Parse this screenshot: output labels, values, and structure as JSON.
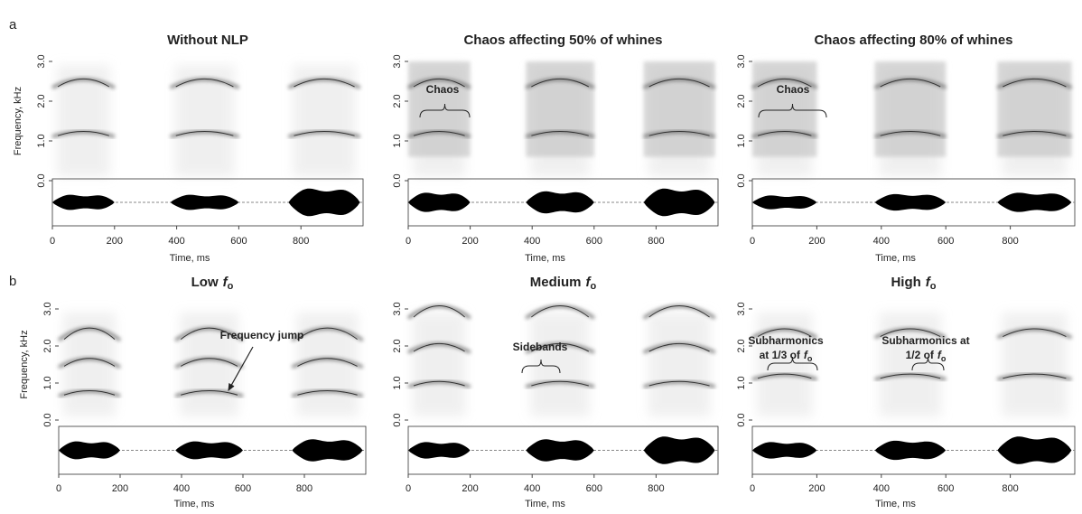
{
  "figure": {
    "panel_labels": [
      "a",
      "b"
    ],
    "y_axis_label": "Frequency, kHz",
    "x_axis_label": "Time, ms",
    "xlim": [
      0,
      1000
    ],
    "xticks": [
      0,
      200,
      400,
      600,
      800
    ],
    "ylim": [
      0,
      3
    ],
    "yticks": [
      {
        "value": 0,
        "label": "0.0"
      },
      {
        "value": 1,
        "label": "1.0"
      },
      {
        "value": 2,
        "label": "2.0"
      },
      {
        "value": 3,
        "label": "3.0"
      }
    ],
    "panels": [
      {
        "title": "Without NLP",
        "annotations": []
      },
      {
        "title": "Chaos affecting 50% of whines",
        "annotations": [
          {
            "lines": [
              "Chaos"
            ]
          }
        ]
      },
      {
        "title": "Chaos affecting 80% of whines",
        "annotations": [
          {
            "lines": [
              "Chaos"
            ]
          }
        ]
      },
      {
        "title": "Low",
        "title_symbol": "f",
        "title_subscript": "o",
        "annotations": [
          {
            "lines": [
              "Frequency jump"
            ]
          }
        ]
      },
      {
        "title": "Medium",
        "title_symbol": "f",
        "title_subscript": "o",
        "annotations": [
          {
            "lines": [
              "Sidebands"
            ]
          }
        ]
      },
      {
        "title": "High",
        "title_symbol": "f",
        "title_subscript": "o",
        "annotations": [
          {
            "lines": [
              "Subharmonics",
              "at 1/3 of"
            ],
            "symbol": "f",
            "subscript": "o"
          },
          {
            "lines": [
              "Subharmonics at",
              "1/2 of"
            ],
            "symbol": "f",
            "subscript": "o"
          }
        ]
      }
    ]
  }
}
